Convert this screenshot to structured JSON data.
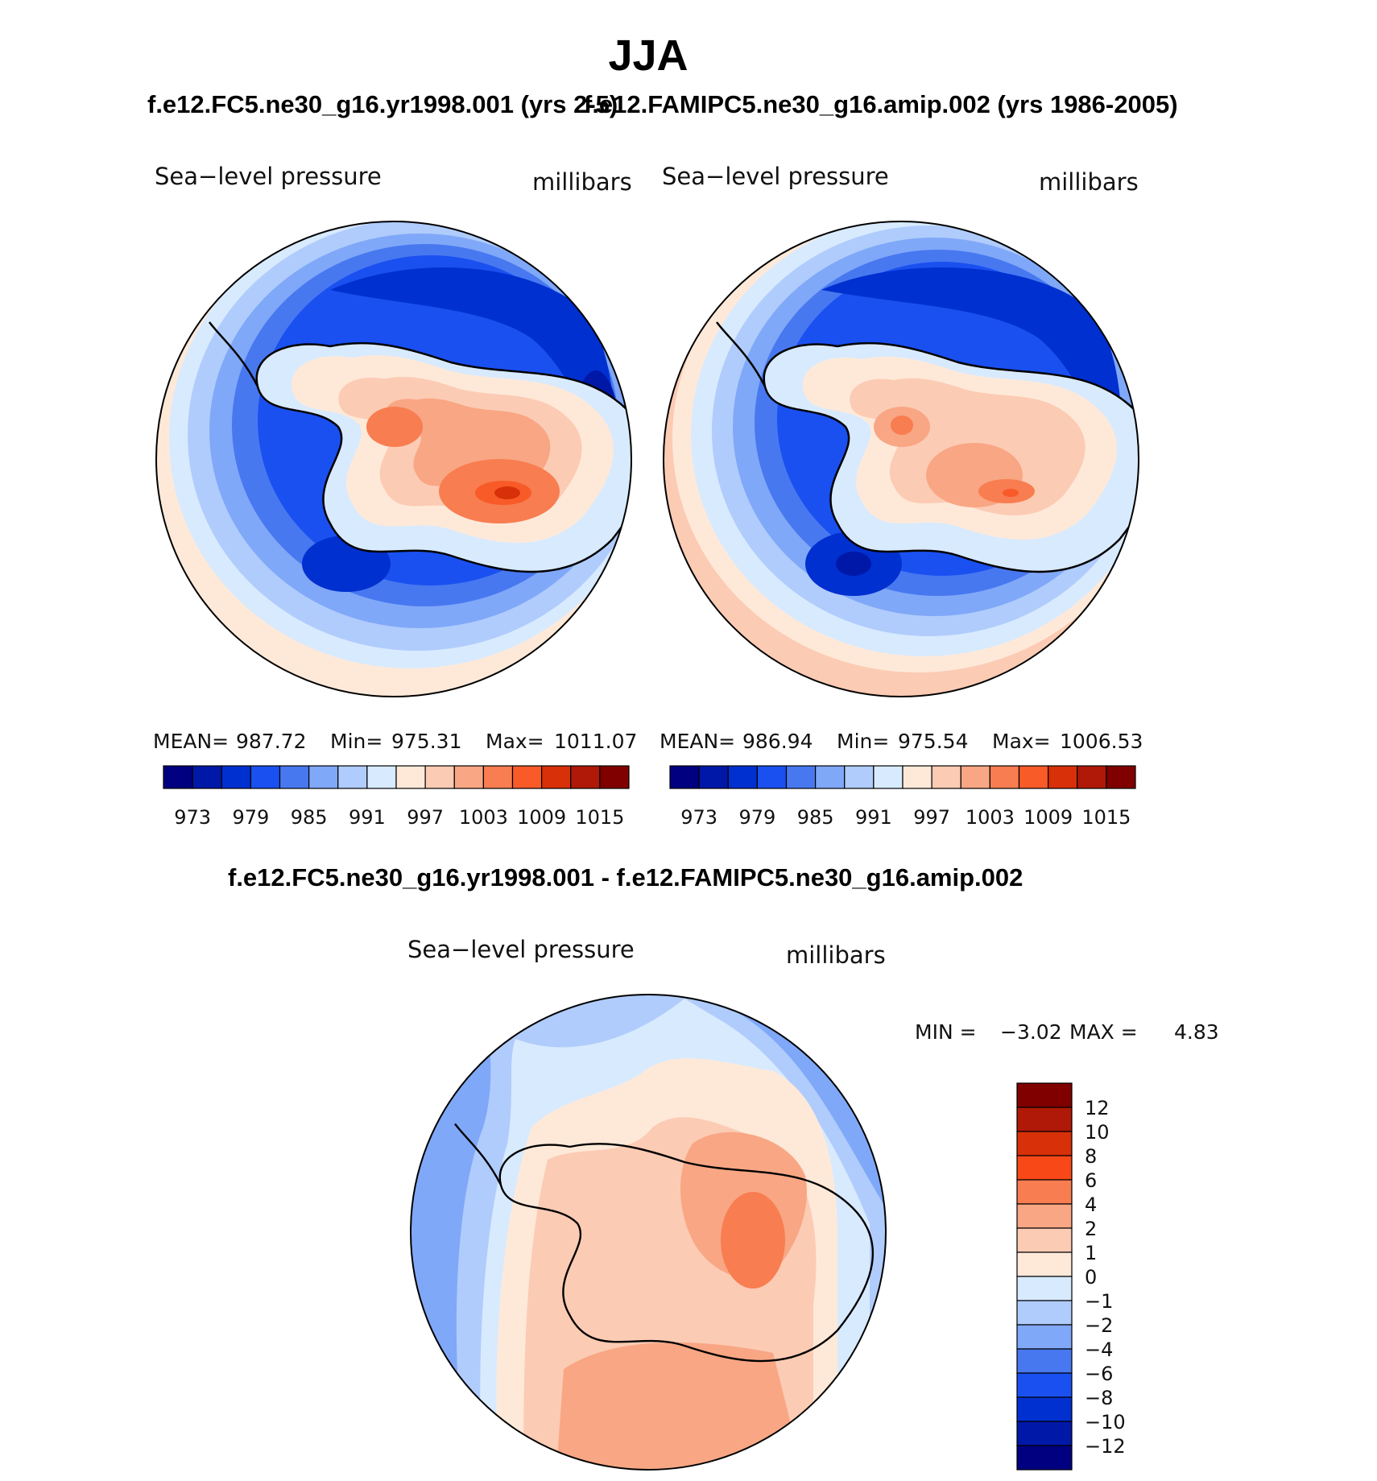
{
  "title": "JJA",
  "panels": [
    {
      "case": "f.e12.FC5.ne30_g16.yr1998.001 (yrs 2-5)",
      "variable": "Sea−level pressure",
      "units": "millibars",
      "stats": {
        "mean_label": "MEAN=",
        "mean": "987.72",
        "min_label": "Min=",
        "min": "975.31",
        "max_label": "Max=",
        "max": "1011.07"
      }
    },
    {
      "case": "f.e12.FAMIPC5.ne30_g16.amip.002 (yrs 1986-2005)",
      "variable": "Sea−level pressure",
      "units": "millibars",
      "stats": {
        "mean_label": "MEAN=",
        "mean": "986.94",
        "min_label": "Min=",
        "min": "975.54",
        "max_label": "Max=",
        "max": "1006.53"
      }
    }
  ],
  "abs_colorbar": {
    "colors": [
      "#000080",
      "#0018a8",
      "#0030d0",
      "#1a50f0",
      "#4878f0",
      "#80a8f8",
      "#b0ccfc",
      "#d8eafe",
      "#fee9d9",
      "#fccbb4",
      "#f8a684",
      "#f87d50",
      "#f85a28",
      "#d83008",
      "#b01808",
      "#800000"
    ],
    "tick_labels": [
      "973",
      "979",
      "985",
      "991",
      "997",
      "1003",
      "1009",
      "1015"
    ]
  },
  "diff": {
    "case": "f.e12.FC5.ne30_g16.yr1998.001 - f.e12.FAMIPC5.ne30_g16.amip.002",
    "variable": "Sea−level pressure",
    "units": "millibars",
    "min_label": "MIN =",
    "min": "−3.02",
    "max_label": "MAX =",
    "max": "4.83",
    "colorbar": {
      "colors": [
        "#800000",
        "#b01808",
        "#d83008",
        "#f84818",
        "#f87d50",
        "#f8a684",
        "#fccbb4",
        "#fee9d9",
        "#d8eafe",
        "#b0ccfc",
        "#80a8f8",
        "#4878f0",
        "#1a50f0",
        "#0030d0",
        "#0018a8",
        "#000080"
      ],
      "tick_labels": [
        "12",
        "10",
        "8",
        "6",
        "4",
        "2",
        "1",
        "0",
        "−1",
        "−2",
        "−4",
        "−6",
        "−8",
        "−10",
        "−12"
      ]
    }
  },
  "map_fills": {
    "base": "#1a50f0",
    "ring1": "#4878f0",
    "ring2": "#80a8f8",
    "ring3": "#b0ccfc",
    "ring4": "#d8eafe",
    "edge": "#fee9d9",
    "edge2": "#fccbb4",
    "low": "#0030d0",
    "low2": "#0018a8",
    "land_lo": "#d8eafe",
    "land_mid": "#fee9d9",
    "land_hi": "#fccbb4",
    "land_hi2": "#f8a684",
    "land_hi3": "#f87d50",
    "land_hi4": "#f85a28",
    "land_hi5": "#d83008"
  }
}
